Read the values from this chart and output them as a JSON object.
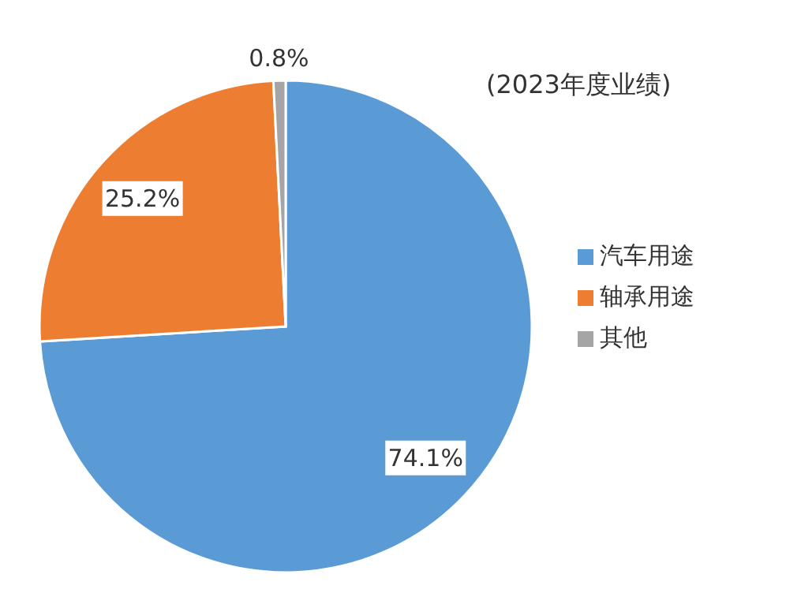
{
  "chart_data": {
    "type": "pie",
    "title": "(2023年度业绩)",
    "categories": [
      "汽车用途",
      "轴承用途",
      "其他"
    ],
    "values": [
      74.1,
      25.2,
      0.8
    ],
    "colors": [
      "#5b9bd5",
      "#ed7d31",
      "#a5a5a5"
    ],
    "value_labels": [
      "74.1%",
      "25.2%",
      "0.8%"
    ],
    "legend": "right"
  }
}
